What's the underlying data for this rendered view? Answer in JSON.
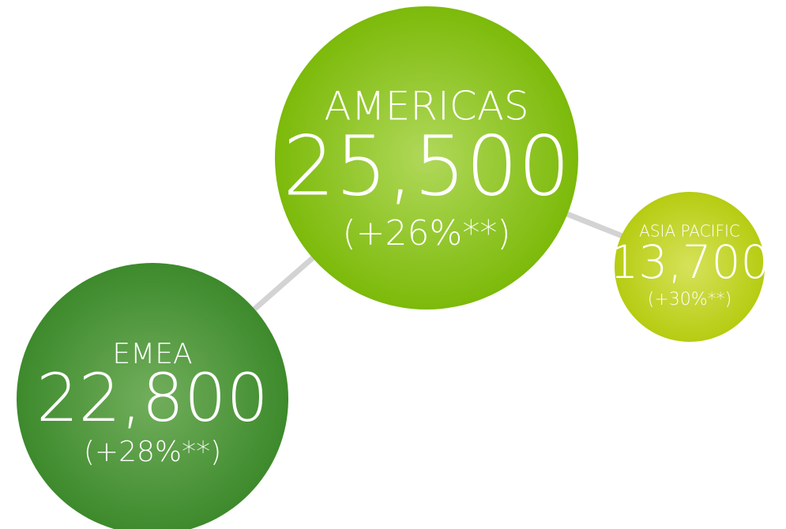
{
  "nodes": [
    {
      "label": "AMERICAS",
      "value": "25,500",
      "change": "(+26%**)"
    },
    {
      "label": "ASIA PACIFIC",
      "value": "13,700",
      "change": "(+30%**)"
    },
    {
      "label": "EMEA",
      "value": "22,800",
      "change": "(+28%**)"
    }
  ]
}
